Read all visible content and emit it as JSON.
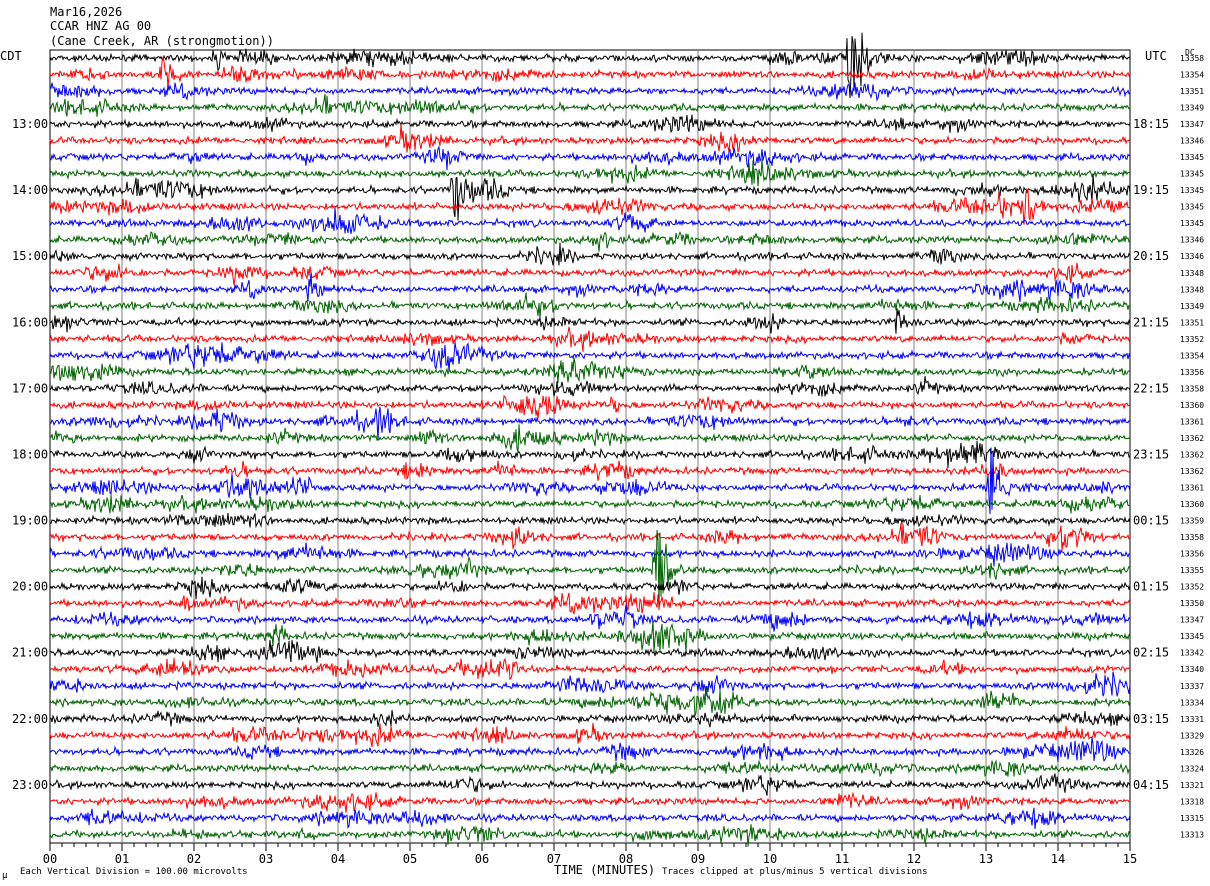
{
  "header": {
    "date": "Mar16,2026",
    "channel": "CCAR HNZ AG 00",
    "location": "(Cane Creek, AR (strongmotion))"
  },
  "labels": {
    "left_tz": "CDT",
    "right_tz": "UTC",
    "dc_header": "DC",
    "x_axis_title": "TIME (MINUTES)",
    "scale_note": "Each Vertical Division = 100.00 microvolts",
    "clip_note": "Traces clipped at plus/minus 5 vertical divisions",
    "corner_mark": "μ"
  },
  "colors": {
    "trace_cycle": [
      "#000000",
      "#ff0000",
      "#0000ff",
      "#006400"
    ],
    "grid": "#808080"
  },
  "chart_data": {
    "type": "line",
    "plot": "helicorder",
    "x_range_minutes": [
      0,
      15
    ],
    "x_ticks": [
      "00",
      "01",
      "02",
      "03",
      "04",
      "05",
      "06",
      "07",
      "08",
      "09",
      "10",
      "11",
      "12",
      "13",
      "14",
      "15"
    ],
    "traces_per_hour": 4,
    "trace_count": 48,
    "cdt_hour_labels": [
      "13:00",
      "14:00",
      "15:00",
      "16:00",
      "17:00",
      "18:00",
      "19:00",
      "20:00",
      "21:00",
      "22:00",
      "23:00"
    ],
    "utc_hour_labels": [
      "18:15",
      "19:15",
      "20:15",
      "21:15",
      "22:15",
      "23:15",
      "00:15",
      "01:15",
      "02:15",
      "03:15",
      "04:15"
    ],
    "first_labeled_trace": 4,
    "dc_offsets": [
      13358,
      13354,
      13351,
      13349,
      13347,
      13346,
      13345,
      13345,
      13345,
      13345,
      13345,
      13346,
      13346,
      13348,
      13348,
      13349,
      13351,
      13352,
      13354,
      13356,
      13358,
      13360,
      13361,
      13362,
      13362,
      13362,
      13361,
      13360,
      13359,
      13358,
      13356,
      13355,
      13352,
      13350,
      13347,
      13345,
      13342,
      13340,
      13337,
      13334,
      13331,
      13329,
      13326,
      13324,
      13321,
      13318,
      13315,
      13313
    ],
    "events": [
      {
        "trace": 0,
        "minute": 11.1,
        "amplitude": 4.5
      },
      {
        "trace": 0,
        "minute": 2.3,
        "amplitude": 1.2
      },
      {
        "trace": 1,
        "minute": 1.55,
        "amplitude": 1.5
      },
      {
        "trace": 8,
        "minute": 5.6,
        "amplitude": 3.0
      },
      {
        "trace": 9,
        "minute": 13.55,
        "amplitude": 1.3
      },
      {
        "trace": 14,
        "minute": 3.6,
        "amplitude": 1.0
      },
      {
        "trace": 16,
        "minute": 11.75,
        "amplitude": 1.1
      },
      {
        "trace": 22,
        "minute": 4.55,
        "amplitude": 1.0
      },
      {
        "trace": 26,
        "minute": 3.4,
        "amplitude": 1.5
      },
      {
        "trace": 26,
        "minute": 13.05,
        "amplitude": 5.0
      },
      {
        "trace": 31,
        "minute": 8.4,
        "amplitude": 5.0
      },
      {
        "trace": 31,
        "minute": 5.8,
        "amplitude": 0.8
      },
      {
        "trace": 33,
        "minute": 1.85,
        "amplitude": 0.6
      },
      {
        "trace": 34,
        "minute": 8.0,
        "amplitude": 0.7
      }
    ],
    "clip_divisions": 5,
    "vertical_division_microvolts": 100.0
  }
}
